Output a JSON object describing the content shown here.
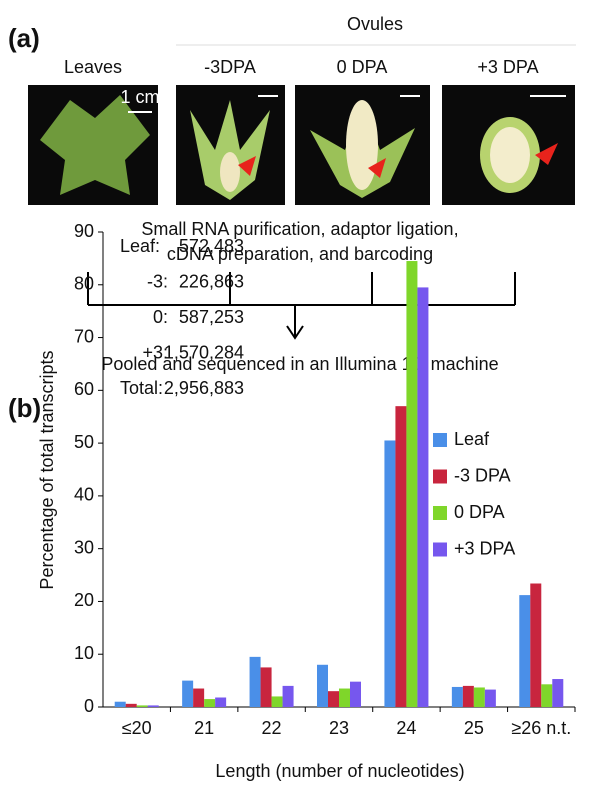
{
  "panel_a": {
    "label": "(a)",
    "group_label": "Ovules",
    "samples": [
      "Leaves",
      "-3DPA",
      "0 DPA",
      "+3 DPA"
    ],
    "scale_label": "1 cm",
    "step_lines": [
      "Small RNA purification, adaptor ligation,",
      "cDNA preparation, and barcoding"
    ],
    "final_step": "Pooled and sequenced in an Illumina 1G machine"
  },
  "chart_data": {
    "type": "bar",
    "panel_label": "(b)",
    "xlabel": "Length (number of nucleotides)",
    "ylabel": "Percentage of total transcripts",
    "categories": [
      "≤20",
      "21",
      "22",
      "23",
      "24",
      "25",
      "≥26 n.t."
    ],
    "series": [
      {
        "name": "Leaf",
        "color": "#4a8fe8",
        "values": [
          1.0,
          5.0,
          9.5,
          8.0,
          50.5,
          3.8,
          21.2
        ]
      },
      {
        "name": "-3 DPA",
        "color": "#c8253e",
        "values": [
          0.6,
          3.5,
          7.5,
          3.0,
          57,
          4.0,
          23.4
        ]
      },
      {
        "name": "0 DPA",
        "color": "#7fd62a",
        "values": [
          0.3,
          1.5,
          2.0,
          3.5,
          84.5,
          3.7,
          4.3
        ]
      },
      {
        "name": "+3 DPA",
        "color": "#7657ee",
        "values": [
          0.3,
          1.8,
          4.0,
          4.8,
          79.5,
          3.3,
          5.3
        ]
      }
    ],
    "ylim": [
      0,
      90
    ],
    "yticks": [
      0,
      10,
      20,
      30,
      40,
      50,
      60,
      70,
      80,
      90
    ],
    "legend": "upper right",
    "annotations": [
      [
        "Leaf:",
        "572,483"
      ],
      [
        "-3:",
        "226,863"
      ],
      [
        "0:",
        "587,253"
      ],
      [
        "+3:",
        "1,570,284"
      ],
      [
        "Total:",
        "2,956,883"
      ]
    ]
  }
}
